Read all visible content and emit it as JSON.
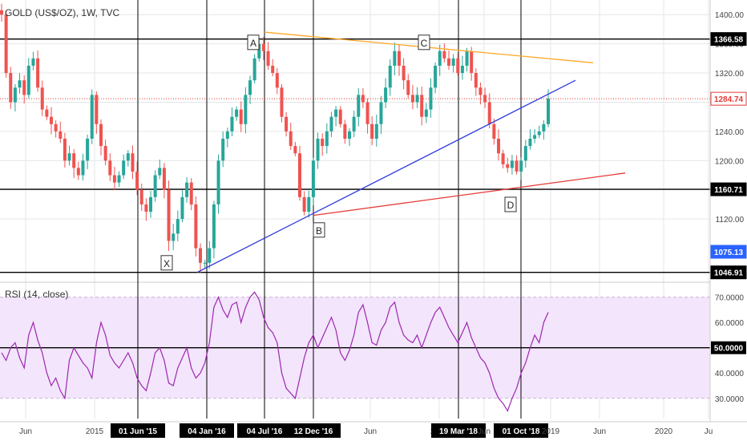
{
  "header": {
    "symbol_title": "GOLD (US$/OZ), 1W, TVC",
    "rsi_title": "RSI (14, close)"
  },
  "colors": {
    "up": "#26a69a",
    "down": "#ef5350",
    "grid": "#e6e6e6",
    "rsi_line": "#9c27b0",
    "rsi_band": "#f3e5fb",
    "resistance_line": "#ffa726",
    "support_line": "#2e3adf",
    "lower_line": "#e53935",
    "price_line": "#e53935",
    "axis_text": "#444444",
    "pivot_line": "#000000"
  },
  "chart_data": [
    {
      "type": "candlestick",
      "title": "GOLD (US$/OZ), 1W, TVC",
      "ylim": [
        1040,
        1420
      ],
      "y_ticks": [
        1120,
        1160,
        1200,
        1240,
        1280,
        1320,
        1360,
        1400
      ],
      "x_ticks": [
        "Jun",
        "2015",
        "01 Jun '15",
        "04 Jan '16",
        "04 Jul '16",
        "12 Dec '16",
        "Jun",
        "2018",
        "19 Mar '18",
        "Jun",
        "01 Oct '18",
        "2019",
        "Jun",
        "2020",
        "Ju"
      ],
      "highlighted_dates": [
        "01 Jun '15",
        "04 Jan '16",
        "04 Jul '16",
        "12 Dec '16",
        "19 Mar '18",
        "01 Oct '18"
      ],
      "horizontal_levels": [
        1366.58,
        1160.71,
        1046.91
      ],
      "price_labels": [
        {
          "value": 1366.58,
          "style": "black"
        },
        {
          "value": 1284.74,
          "style": "red"
        },
        {
          "value": 1160.71,
          "style": "black"
        },
        {
          "value": 1075.13,
          "style": "blue"
        },
        {
          "value": 1046.91,
          "style": "black"
        }
      ],
      "pattern_points": [
        "X",
        "A",
        "B",
        "C",
        "D"
      ],
      "last_close": 1284.74,
      "approx_closes": [
        1400,
        1320,
        1280,
        1300,
        1310,
        1290,
        1330,
        1340,
        1300,
        1270,
        1260,
        1250,
        1240,
        1230,
        1200,
        1210,
        1190,
        1180,
        1200,
        1230,
        1290,
        1250,
        1220,
        1200,
        1180,
        1170,
        1180,
        1200,
        1210,
        1185,
        1160,
        1140,
        1130,
        1150,
        1180,
        1190,
        1160,
        1090,
        1100,
        1120,
        1150,
        1170,
        1140,
        1080,
        1060,
        1060,
        1080,
        1140,
        1200,
        1230,
        1240,
        1260,
        1270,
        1250,
        1290,
        1310,
        1340,
        1360,
        1350,
        1330,
        1320,
        1300,
        1260,
        1240,
        1220,
        1210,
        1150,
        1130,
        1150,
        1200,
        1230,
        1220,
        1240,
        1260,
        1270,
        1250,
        1230,
        1240,
        1260,
        1290,
        1280,
        1250,
        1230,
        1250,
        1280,
        1300,
        1330,
        1350,
        1330,
        1310,
        1290,
        1280,
        1290,
        1260,
        1270,
        1300,
        1330,
        1350,
        1340,
        1330,
        1340,
        1320,
        1330,
        1350,
        1320,
        1300,
        1290,
        1280,
        1250,
        1230,
        1210,
        1195,
        1190,
        1200,
        1185,
        1200,
        1220,
        1230,
        1235,
        1240,
        1250,
        1285
      ]
    },
    {
      "type": "line",
      "title": "RSI (14, close)",
      "ylim": [
        22,
        74
      ],
      "y_ticks": [
        30,
        40,
        50,
        60,
        70
      ],
      "band": [
        30,
        70
      ],
      "level_line": 50,
      "approx_values": [
        48,
        45,
        50,
        52,
        46,
        42,
        55,
        60,
        53,
        48,
        40,
        35,
        38,
        33,
        30,
        45,
        50,
        47,
        44,
        42,
        38,
        52,
        60,
        55,
        47,
        44,
        42,
        45,
        48,
        44,
        38,
        35,
        33,
        40,
        48,
        50,
        45,
        36,
        35,
        42,
        46,
        50,
        42,
        38,
        40,
        44,
        52,
        66,
        70,
        65,
        62,
        67,
        68,
        60,
        66,
        70,
        72,
        69,
        62,
        58,
        56,
        52,
        40,
        34,
        32,
        30,
        38,
        46,
        52,
        55,
        50,
        54,
        58,
        62,
        57,
        48,
        45,
        49,
        55,
        64,
        67,
        60,
        52,
        51,
        57,
        60,
        66,
        68,
        60,
        55,
        53,
        52,
        55,
        50,
        55,
        60,
        64,
        66,
        62,
        58,
        55,
        52,
        56,
        60,
        54,
        50,
        46,
        44,
        40,
        34,
        30,
        28,
        25,
        30,
        34,
        40,
        44,
        50,
        55,
        52,
        60,
        64
      ]
    }
  ]
}
